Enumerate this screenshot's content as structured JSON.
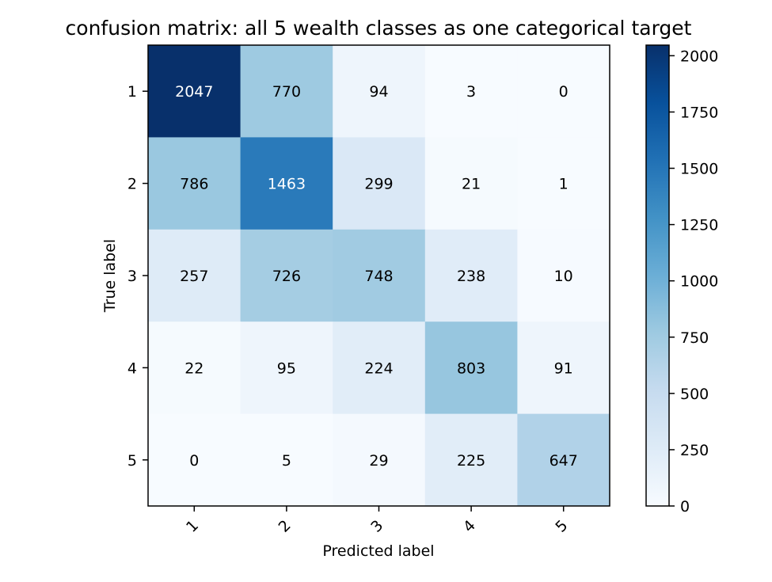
{
  "chart_data": {
    "type": "heatmap",
    "title": "confusion matrix: all 5 wealth classes as one categorical target",
    "xlabel": "Predicted label",
    "ylabel": "True label",
    "x_categories": [
      "1",
      "2",
      "3",
      "4",
      "5"
    ],
    "y_categories": [
      "1",
      "2",
      "3",
      "4",
      "5"
    ],
    "values": [
      [
        2047,
        770,
        94,
        3,
        0
      ],
      [
        786,
        1463,
        299,
        21,
        1
      ],
      [
        257,
        726,
        748,
        238,
        10
      ],
      [
        22,
        95,
        224,
        803,
        91
      ],
      [
        0,
        5,
        29,
        225,
        647
      ]
    ],
    "colormap": "Blues",
    "colorbar": {
      "range": [
        0,
        2047
      ],
      "ticks": [
        0,
        250,
        500,
        750,
        1000,
        1250,
        1500,
        1750,
        2000
      ]
    },
    "text_color_dark": "#000000",
    "text_color_light": "#ffffff",
    "x_tick_rotation": "45 degrees"
  }
}
